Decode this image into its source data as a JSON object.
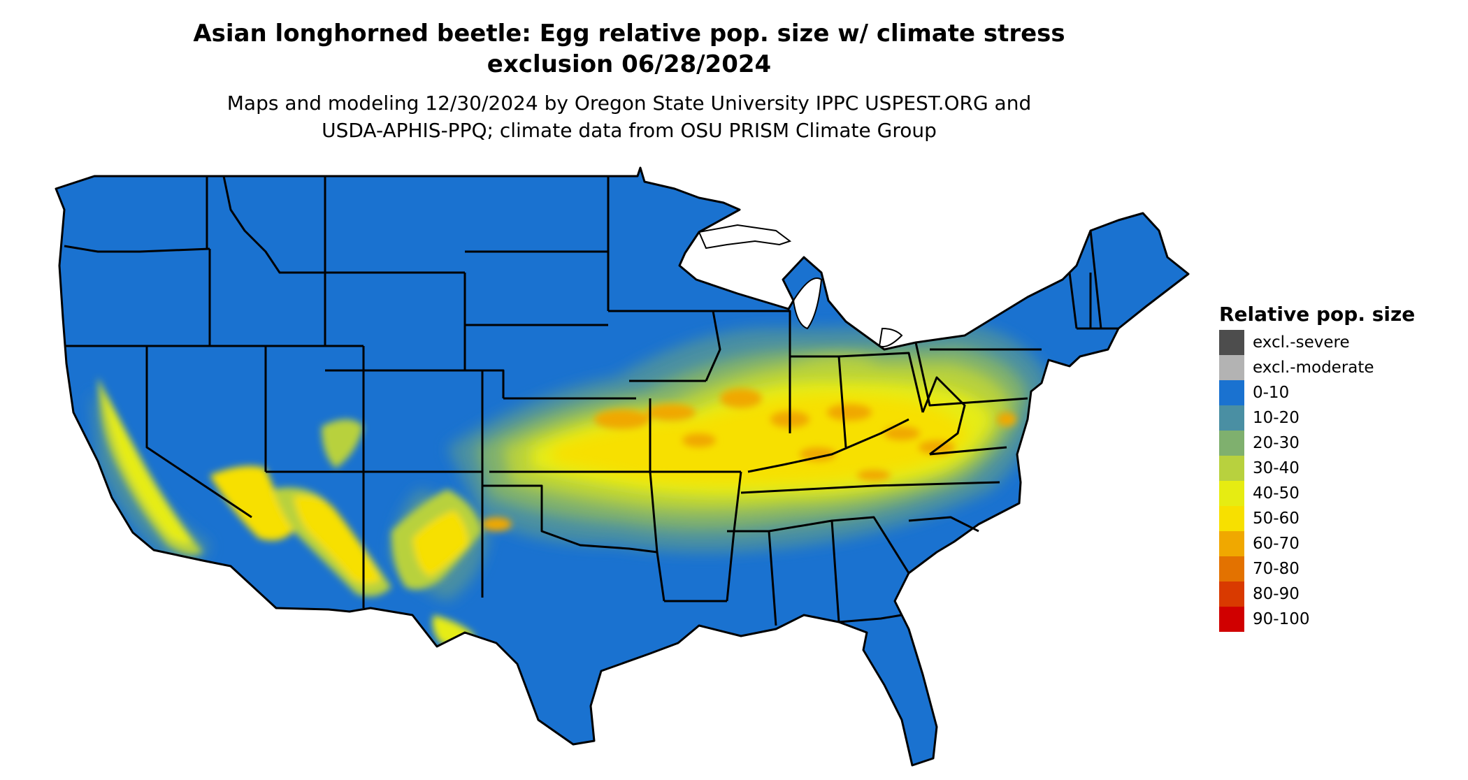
{
  "title": {
    "lines": [
      "Asian longhorned beetle: Egg relative pop. size w/ climate stress",
      "exclusion 06/28/2024"
    ]
  },
  "subtitle": {
    "lines": [
      "Maps and modeling 12/30/2024 by Oregon State University IPPC USPEST.ORG and",
      "USDA-APHIS-PPQ; climate data from OSU PRISM Climate Group"
    ]
  },
  "legend": {
    "title": "Relative pop. size",
    "items": [
      {
        "label": "excl.-severe",
        "color": "#4d4d4d"
      },
      {
        "label": "excl.-moderate",
        "color": "#b3b3b3"
      },
      {
        "label": "0-10",
        "color": "#1a72d0"
      },
      {
        "label": "10-20",
        "color": "#4a8fa3"
      },
      {
        "label": "20-30",
        "color": "#7fb06e"
      },
      {
        "label": "30-40",
        "color": "#b8d13e"
      },
      {
        "label": "40-50",
        "color": "#e6ec12"
      },
      {
        "label": "50-60",
        "color": "#f7e000"
      },
      {
        "label": "60-70",
        "color": "#f0a800"
      },
      {
        "label": "70-80",
        "color": "#e37200"
      },
      {
        "label": "80-90",
        "color": "#d93a00"
      },
      {
        "label": "90-100",
        "color": "#d00000"
      }
    ]
  },
  "map": {
    "base_color": "#1a72d0",
    "border_color": "#000000"
  }
}
